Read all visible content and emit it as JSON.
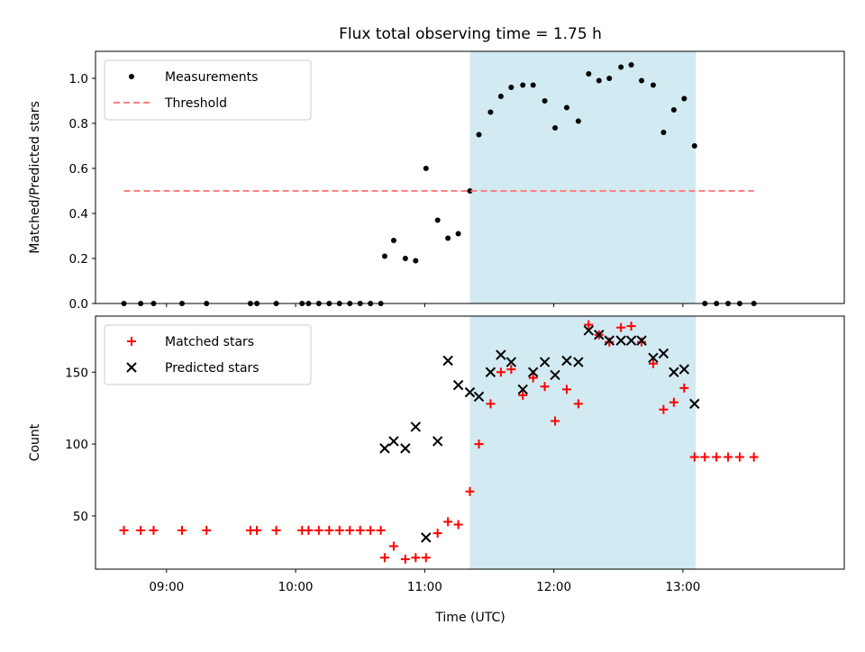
{
  "chart_data": {
    "title": "Flux total observing time = 1.75 h",
    "xlabel": "Time (UTC)",
    "x_unit": "hours UTC",
    "xlim": [
      8.45,
      14.25
    ],
    "xticks": [
      9,
      10,
      11,
      12,
      13
    ],
    "xtick_labels": [
      "09:00",
      "10:00",
      "11:00",
      "12:00",
      "13:00"
    ],
    "observing_window": {
      "start": 11.35,
      "end": 13.1,
      "color": "#add8e6"
    },
    "panels": [
      {
        "type": "scatter",
        "ylabel": "Matched/Predicted stars",
        "ylim": [
          0,
          1.12
        ],
        "yticks": [
          0.0,
          0.2,
          0.4,
          0.6,
          0.8,
          1.0
        ],
        "ytick_labels": [
          "0.0",
          "0.2",
          "0.4",
          "0.6",
          "0.8",
          "1.0"
        ],
        "legend_position": "top-left",
        "series": [
          {
            "name": "Measurements",
            "marker": "dot",
            "color": "#000000",
            "x": [
              8.67,
              8.8,
              8.9,
              9.12,
              9.31,
              9.65,
              9.7,
              9.85,
              10.05,
              10.1,
              10.18,
              10.26,
              10.34,
              10.42,
              10.5,
              10.58,
              10.66,
              10.69,
              10.76,
              10.85,
              10.93,
              11.01,
              11.1,
              11.18,
              11.26,
              11.35,
              11.42,
              11.51,
              11.59,
              11.67,
              11.76,
              11.84,
              11.93,
              12.01,
              12.1,
              12.19,
              12.27,
              12.35,
              12.43,
              12.52,
              12.6,
              12.68,
              12.77,
              12.85,
              12.93,
              13.01,
              13.09,
              13.17,
              13.26,
              13.35,
              13.44,
              13.55
            ],
            "y": [
              0,
              0,
              0,
              0,
              0,
              0,
              0,
              0,
              0,
              0,
              0,
              0,
              0,
              0,
              0,
              0,
              0,
              0.21,
              0.28,
              0.2,
              0.19,
              0.6,
              0.37,
              0.29,
              0.31,
              0.5,
              0.75,
              0.85,
              0.92,
              0.96,
              0.97,
              0.97,
              0.9,
              0.78,
              0.87,
              0.81,
              1.02,
              0.99,
              1.0,
              1.05,
              1.06,
              0.99,
              0.97,
              0.76,
              0.86,
              0.91,
              0.7,
              0,
              0,
              0,
              0,
              0
            ]
          },
          {
            "name": "Threshold",
            "style": "dashed",
            "color": "#ff7f7f",
            "x": [
              8.67,
              13.55
            ],
            "y": [
              0.5,
              0.5
            ]
          }
        ]
      },
      {
        "type": "scatter",
        "ylabel": "Count",
        "ylim": [
          13,
          189
        ],
        "yticks": [
          50,
          100,
          150
        ],
        "ytick_labels": [
          "50",
          "100",
          "150"
        ],
        "legend_position": "top-left",
        "series": [
          {
            "name": "Matched stars",
            "marker": "plus",
            "color": "#ff0000",
            "x": [
              8.67,
              8.8,
              8.9,
              9.12,
              9.31,
              9.65,
              9.7,
              9.85,
              10.05,
              10.1,
              10.18,
              10.26,
              10.34,
              10.42,
              10.5,
              10.58,
              10.66,
              10.69,
              10.76,
              10.85,
              10.93,
              11.01,
              11.1,
              11.18,
              11.26,
              11.35,
              11.42,
              11.51,
              11.59,
              11.67,
              11.76,
              11.84,
              11.93,
              12.01,
              12.1,
              12.19,
              12.27,
              12.35,
              12.43,
              12.52,
              12.6,
              12.68,
              12.77,
              12.85,
              12.93,
              13.01,
              13.09,
              13.17,
              13.26,
              13.35,
              13.44,
              13.55
            ],
            "y": [
              40,
              40,
              40,
              40,
              40,
              40,
              40,
              40,
              40,
              40,
              40,
              40,
              40,
              40,
              40,
              40,
              40,
              21,
              29,
              20,
              21,
              21,
              38,
              46,
              44,
              67,
              100,
              128,
              150,
              152,
              134,
              146,
              140,
              116,
              138,
              128,
              183,
              176,
              171,
              181,
              182,
              171,
              156,
              124,
              129,
              139,
              91,
              91,
              91,
              91,
              91,
              91
            ]
          },
          {
            "name": "Predicted stars",
            "marker": "x",
            "color": "#000000",
            "x": [
              10.69,
              10.76,
              10.85,
              10.93,
              11.01,
              11.1,
              11.18,
              11.26,
              11.35,
              11.42,
              11.51,
              11.59,
              11.67,
              11.76,
              11.84,
              11.93,
              12.01,
              12.1,
              12.19,
              12.27,
              12.35,
              12.43,
              12.52,
              12.6,
              12.68,
              12.77,
              12.85,
              12.93,
              13.01,
              13.09
            ],
            "y": [
              97,
              102,
              97,
              112,
              35,
              102,
              158,
              141,
              136,
              133,
              150,
              162,
              157,
              138,
              150,
              157,
              148,
              158,
              157,
              179,
              176,
              172,
              172,
              172,
              172,
              160,
              163,
              150,
              152,
              128
            ]
          }
        ]
      }
    ]
  }
}
